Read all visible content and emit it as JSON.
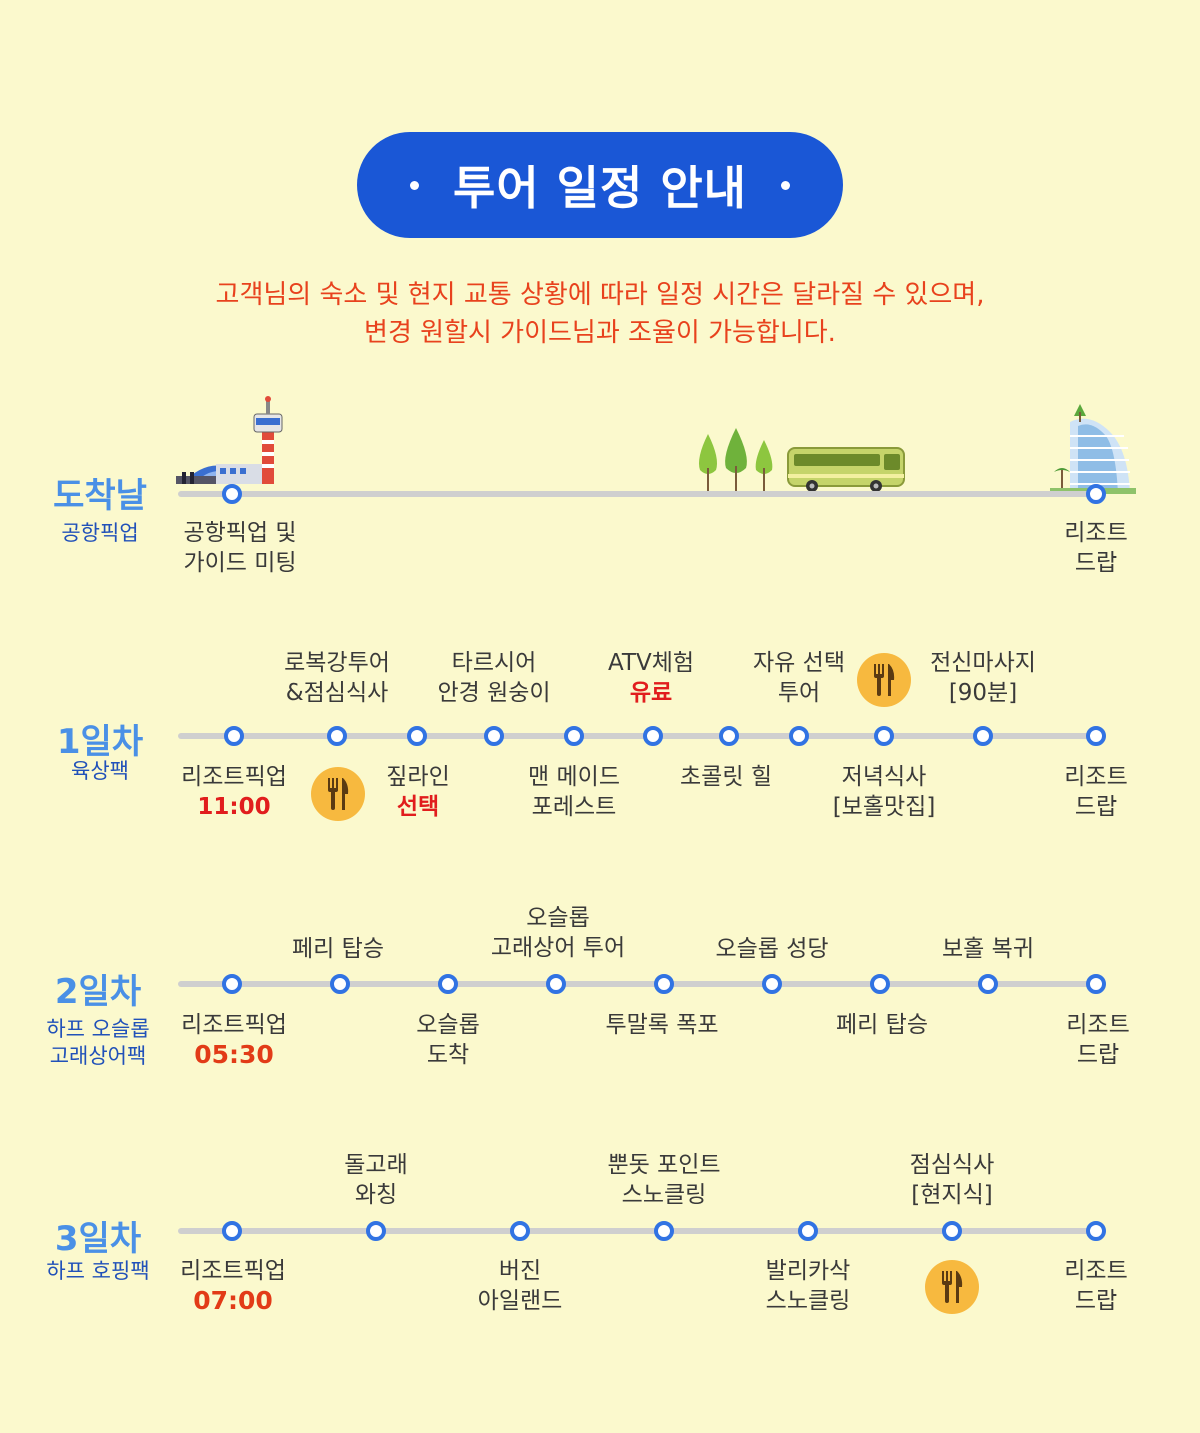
{
  "header": {
    "title": "투어 일정 안내"
  },
  "notice": [
    "고객님의 숙소 및 현지 교통 상황에 따라 일정 시간은 달라질 수 있으며,",
    "변경 원할시 가이드님과 조율이 가능합니다."
  ],
  "arrival": {
    "title": "도착날",
    "sub": "공항픽업",
    "start": [
      "공항픽업 및",
      "가이드 미팅"
    ],
    "end": [
      "리조트",
      "드랍"
    ]
  },
  "day1": {
    "title": "1일차",
    "sub": "육상팩",
    "top": [
      [
        "로복강투어",
        "&점심식사"
      ],
      [
        "타르시어",
        "안경 원숭이"
      ],
      [
        "ATV체험",
        "유료"
      ],
      [
        "자유 선택",
        "투어"
      ],
      [
        "전신마사지",
        "[90분]"
      ]
    ],
    "bottom": [
      [
        "리조트픽업",
        "11:00"
      ],
      [
        "짚라인",
        "선택"
      ],
      [
        "맨 메이드",
        "포레스트"
      ],
      [
        "초콜릿 힐"
      ],
      [
        "저녁식사",
        "[보홀맛집]"
      ],
      [
        "리조트",
        "드랍"
      ]
    ]
  },
  "day2": {
    "title": "2일차",
    "sub": [
      "하프 오슬롭",
      "고래상어팩"
    ],
    "top": [
      [
        "페리 탑승"
      ],
      [
        "오슬롭",
        "고래상어 투어"
      ],
      [
        "오슬롭 성당"
      ],
      [
        "보홀 복귀"
      ]
    ],
    "bottom": [
      [
        "리조트픽업",
        "05:30"
      ],
      [
        "오슬롭",
        "도착"
      ],
      [
        "투말록 폭포"
      ],
      [
        "페리 탑승"
      ],
      [
        "리조트",
        "드랍"
      ]
    ]
  },
  "day3": {
    "title": "3일차",
    "sub": "하프 호핑팩",
    "top": [
      [
        "돌고래",
        "와칭"
      ],
      [
        "뿐돗 포인트",
        "스노클링"
      ],
      [
        "점심식사",
        "[현지식]"
      ]
    ],
    "bottom": [
      [
        "리조트픽업",
        "07:00"
      ],
      [
        "버진",
        "아일랜드"
      ],
      [
        "발리카삭",
        "스노클링"
      ],
      [
        "리조트",
        "드랍"
      ]
    ]
  },
  "icons": {
    "meal": "fork-knife-icon",
    "airport": "airport-tower-icon",
    "trees": "trees-icon",
    "bus": "bus-icon",
    "resort": "resort-hotel-icon"
  },
  "colors": {
    "background": "#fbf9cd",
    "accent": "#1a57d6",
    "node": "#3173e3",
    "notice": "#e8421d",
    "meal": "#f7b93f"
  }
}
